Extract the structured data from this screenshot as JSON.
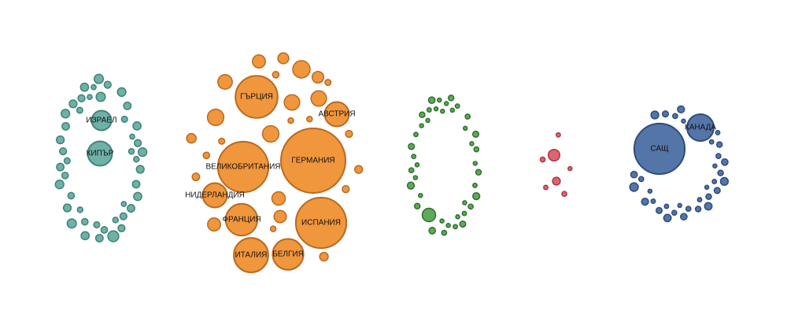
{
  "chart_data": {
    "type": "bubble",
    "title": "",
    "groups": [
      {
        "name": "",
        "color": "#6fb1a7",
        "stroke": "#3f8378",
        "labeled": [
          {
            "label": "КИПЪР",
            "value": 100
          },
          {
            "label": "ИЗРАЕЛ",
            "value": 65
          }
        ],
        "small_values": [
          20,
          14,
          14,
          14,
          12,
          12,
          12,
          12,
          11,
          11,
          11,
          11,
          10,
          10,
          10,
          10,
          9,
          9,
          9,
          9,
          9,
          9,
          8,
          8,
          8,
          8,
          8,
          8,
          7,
          7,
          7,
          7,
          6,
          6,
          6,
          6,
          5,
          5,
          5,
          5,
          4,
          4,
          4,
          4
        ]
      },
      {
        "name": "",
        "color": "#f0963d",
        "stroke": "#b96a1f",
        "labeled": [
          {
            "label": "ГЕРМАНИЯ",
            "value": 700
          },
          {
            "label": "ИСПАНИЯ",
            "value": 430
          },
          {
            "label": "ВЕЛИКОБРИТАНИЯ",
            "value": 430
          },
          {
            "label": "ГЪРЦИЯ",
            "value": 300
          },
          {
            "label": "ИТАЛИЯ",
            "value": 200
          },
          {
            "label": "ФРАНЦИЯ",
            "value": 170
          },
          {
            "label": "БЕЛГИЯ",
            "value": 160
          },
          {
            "label": "АВСТРИЯ",
            "value": 100
          },
          {
            "label": "НИДЕРЛАНДИЯ",
            "value": 100
          }
        ],
        "small_values": [
          50,
          45,
          45,
          40,
          40,
          35,
          30,
          28,
          28,
          25,
          22,
          20,
          15,
          12,
          10,
          9,
          8,
          8,
          7,
          7,
          6,
          6,
          5,
          5,
          5,
          4,
          4,
          3,
          3,
          2,
          2,
          2
        ]
      },
      {
        "name": "",
        "color": "#5faa5a",
        "stroke": "#2f6f2c",
        "labeled": [],
        "small_values": [
          30,
          8,
          8,
          7,
          7,
          6,
          6,
          6,
          5,
          5,
          5,
          5,
          4,
          4,
          4,
          4,
          4,
          3,
          3,
          3,
          3,
          3,
          3,
          3,
          2,
          2,
          2,
          2,
          2,
          2,
          2,
          2,
          2,
          2,
          2,
          2,
          2,
          2,
          1,
          1,
          1
        ]
      },
      {
        "name": "",
        "color": "#e06470",
        "stroke": "#a73a45",
        "labeled": [],
        "small_values": [
          22,
          10,
          4,
          4,
          3,
          3,
          2
        ]
      },
      {
        "name": "",
        "color": "#5475a8",
        "stroke": "#2f4c7c",
        "labeled": [
          {
            "label": "САЩ",
            "value": 430
          },
          {
            "label": "КАНАДА",
            "value": 120
          }
        ],
        "small_values": [
          12,
          10,
          10,
          9,
          9,
          8,
          8,
          7,
          7,
          7,
          6,
          6,
          6,
          5,
          5,
          5,
          5,
          4,
          4,
          4,
          4,
          4,
          3,
          3,
          3,
          3,
          3,
          3,
          2,
          2,
          2,
          2,
          2
        ]
      }
    ]
  }
}
